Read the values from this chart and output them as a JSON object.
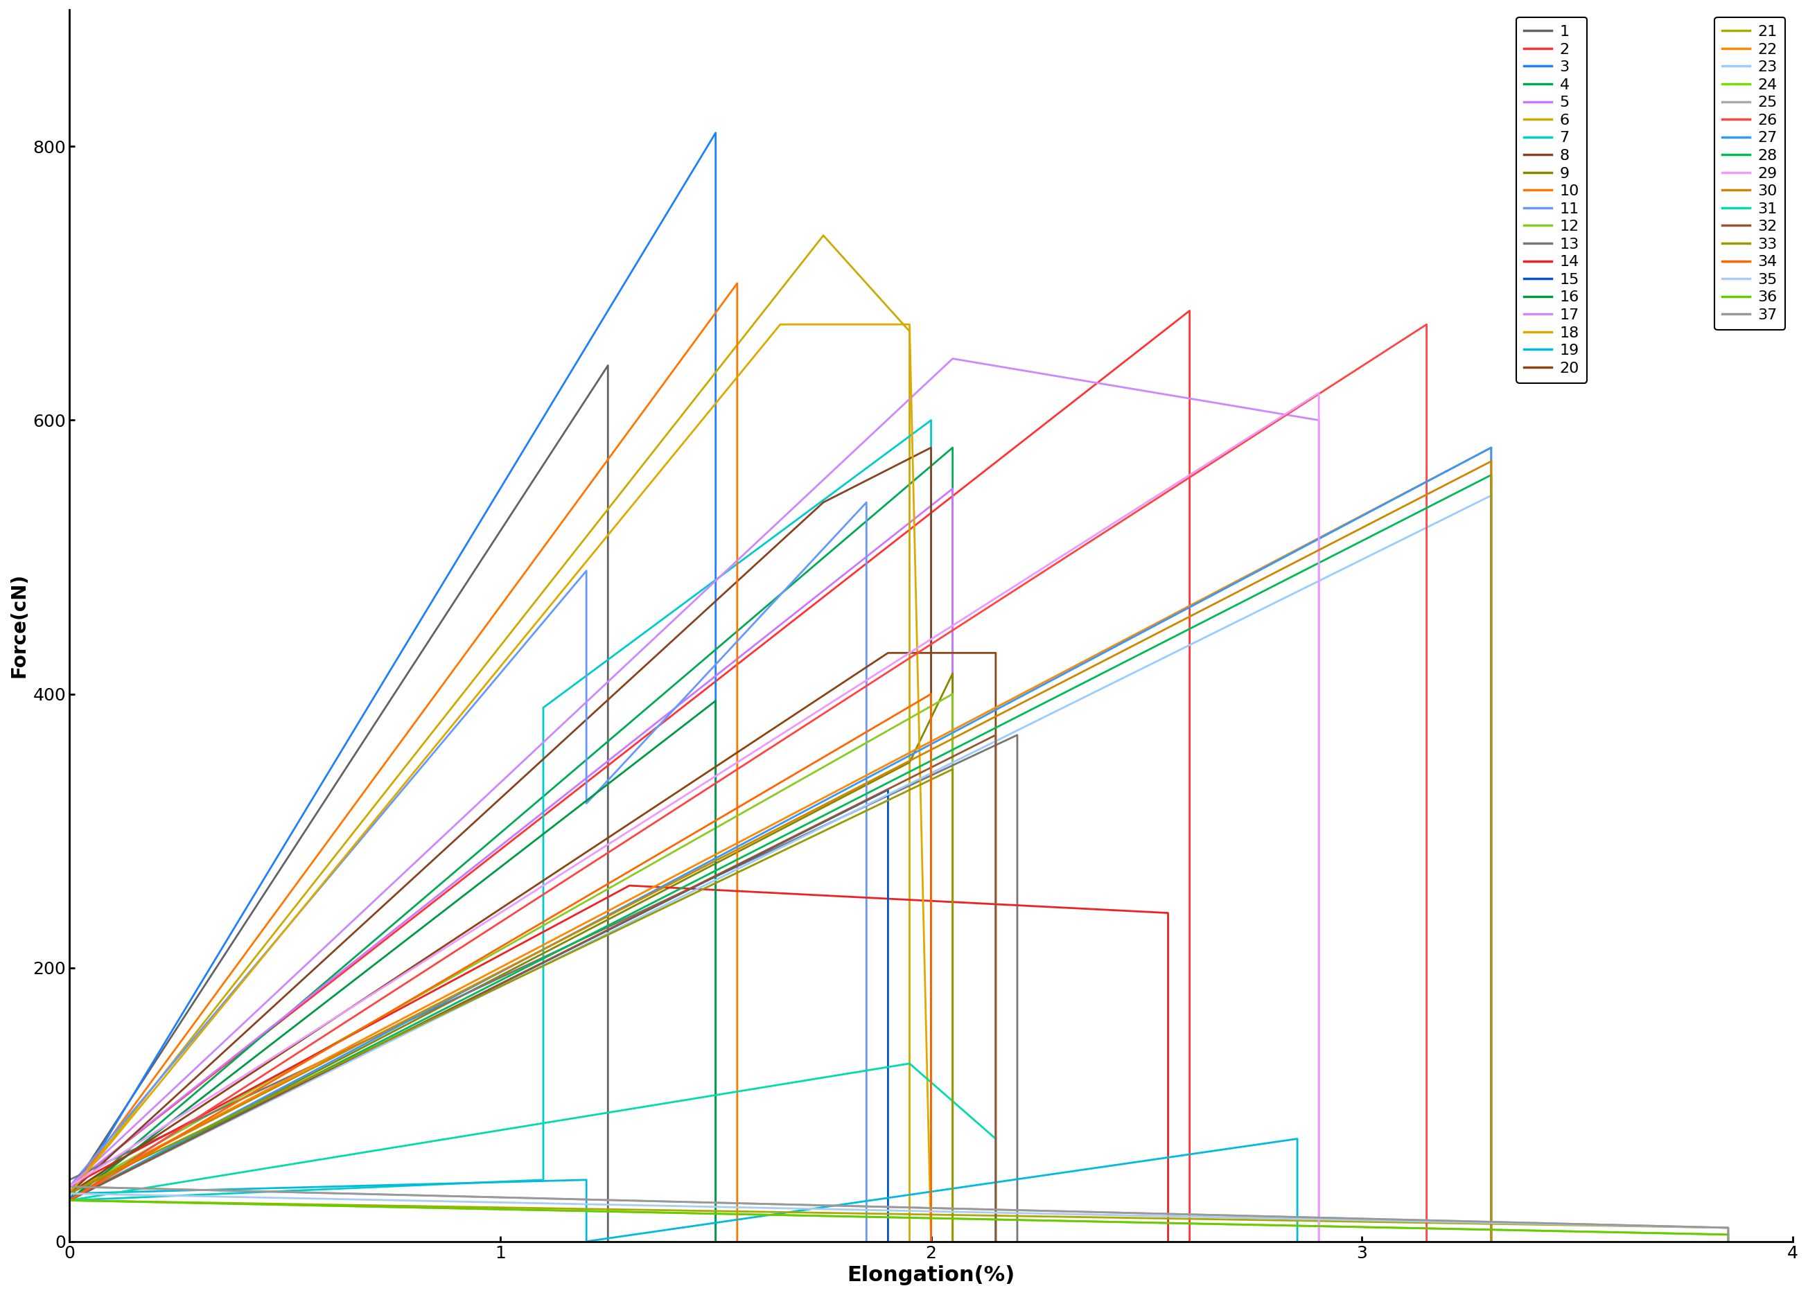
{
  "title": "",
  "xlabel": "Elongation(%)",
  "ylabel": "Force(cN)",
  "xlim": [
    0,
    4
  ],
  "ylim": [
    0,
    900
  ],
  "xticks": [
    0,
    1,
    2,
    3,
    4
  ],
  "yticks": [
    0,
    200,
    400,
    600,
    800
  ],
  "series": [
    {
      "label": "1",
      "color": "#636363",
      "data": [
        [
          0,
          35
        ],
        [
          1.25,
          640
        ],
        [
          1.25,
          0
        ]
      ]
    },
    {
      "label": "2",
      "color": "#ff3333",
      "data": [
        [
          0,
          40
        ],
        [
          2.6,
          680
        ],
        [
          2.6,
          0
        ]
      ]
    },
    {
      "label": "3",
      "color": "#1e7fff",
      "data": [
        [
          0,
          30
        ],
        [
          1.5,
          810
        ],
        [
          1.5,
          0
        ]
      ]
    },
    {
      "label": "4",
      "color": "#00aa55",
      "data": [
        [
          0,
          30
        ],
        [
          2.05,
          580
        ],
        [
          2.05,
          0
        ]
      ]
    },
    {
      "label": "5",
      "color": "#cc77ff",
      "data": [
        [
          0,
          40
        ],
        [
          2.05,
          550
        ],
        [
          2.05,
          0
        ]
      ]
    },
    {
      "label": "6",
      "color": "#ccaa00",
      "data": [
        [
          0,
          35
        ],
        [
          1.75,
          735
        ],
        [
          1.95,
          665
        ],
        [
          1.95,
          0
        ]
      ]
    },
    {
      "label": "7",
      "color": "#00cccc",
      "data": [
        [
          0,
          30
        ],
        [
          1.1,
          45
        ],
        [
          1.1,
          390
        ],
        [
          2.0,
          600
        ],
        [
          2.0,
          0
        ]
      ]
    },
    {
      "label": "8",
      "color": "#884422",
      "data": [
        [
          0,
          35
        ],
        [
          1.75,
          540
        ],
        [
          2.0,
          580
        ],
        [
          2.0,
          0
        ]
      ]
    },
    {
      "label": "9",
      "color": "#888800",
      "data": [
        [
          0,
          30
        ],
        [
          1.95,
          350
        ],
        [
          2.05,
          415
        ],
        [
          2.05,
          0
        ]
      ]
    },
    {
      "label": "10",
      "color": "#ff7700",
      "data": [
        [
          0,
          35
        ],
        [
          1.55,
          700
        ],
        [
          1.55,
          0
        ]
      ]
    },
    {
      "label": "11",
      "color": "#6699ff",
      "data": [
        [
          0,
          40
        ],
        [
          1.2,
          490
        ],
        [
          1.2,
          320
        ],
        [
          1.85,
          540
        ],
        [
          1.85,
          0
        ]
      ]
    },
    {
      "label": "12",
      "color": "#88cc22",
      "data": [
        [
          0,
          35
        ],
        [
          2.05,
          400
        ],
        [
          2.05,
          0
        ]
      ]
    },
    {
      "label": "13",
      "color": "#777777",
      "data": [
        [
          0,
          45
        ],
        [
          2.2,
          370
        ],
        [
          2.2,
          0
        ]
      ]
    },
    {
      "label": "14",
      "color": "#ee2222",
      "data": [
        [
          0,
          40
        ],
        [
          1.3,
          260
        ],
        [
          2.55,
          240
        ],
        [
          2.55,
          0
        ]
      ]
    },
    {
      "label": "15",
      "color": "#0055cc",
      "data": [
        [
          0,
          30
        ],
        [
          1.9,
          330
        ],
        [
          1.9,
          0
        ]
      ]
    },
    {
      "label": "16",
      "color": "#009944",
      "data": [
        [
          0,
          30
        ],
        [
          1.5,
          395
        ],
        [
          1.5,
          0
        ]
      ]
    },
    {
      "label": "17",
      "color": "#cc88ff",
      "data": [
        [
          0,
          40
        ],
        [
          2.05,
          645
        ],
        [
          2.9,
          600
        ],
        [
          2.9,
          0
        ]
      ]
    },
    {
      "label": "18",
      "color": "#ddaa00",
      "data": [
        [
          0,
          35
        ],
        [
          1.65,
          670
        ],
        [
          1.95,
          670
        ],
        [
          2.0,
          0
        ]
      ]
    },
    {
      "label": "19",
      "color": "#00bbdd",
      "data": [
        [
          0,
          35
        ],
        [
          1.2,
          45
        ],
        [
          1.2,
          0
        ],
        [
          2.85,
          75
        ],
        [
          2.85,
          0
        ]
      ]
    },
    {
      "label": "20",
      "color": "#8B4513",
      "data": [
        [
          0,
          35
        ],
        [
          1.9,
          430
        ],
        [
          2.15,
          430
        ],
        [
          2.15,
          0
        ]
      ]
    },
    {
      "label": "21",
      "color": "#aaaa00",
      "data": [
        [
          0,
          30
        ],
        [
          3.85,
          10
        ],
        [
          3.85,
          0
        ]
      ]
    },
    {
      "label": "22",
      "color": "#ff8800",
      "data": [
        [
          0,
          35
        ],
        [
          3.3,
          580
        ],
        [
          3.3,
          0
        ]
      ]
    },
    {
      "label": "23",
      "color": "#99ccff",
      "data": [
        [
          0,
          30
        ],
        [
          3.3,
          545
        ],
        [
          3.3,
          0
        ]
      ]
    },
    {
      "label": "24",
      "color": "#77dd00",
      "data": [
        [
          0,
          30
        ],
        [
          3.85,
          5
        ],
        [
          3.85,
          0
        ]
      ]
    },
    {
      "label": "25",
      "color": "#aaaaaa",
      "data": [
        [
          0,
          40
        ],
        [
          3.85,
          10
        ],
        [
          3.85,
          0
        ]
      ]
    },
    {
      "label": "26",
      "color": "#ff4444",
      "data": [
        [
          0,
          30
        ],
        [
          3.15,
          670
        ],
        [
          3.15,
          0
        ]
      ]
    },
    {
      "label": "27",
      "color": "#3399ff",
      "data": [
        [
          0,
          30
        ],
        [
          3.3,
          580
        ],
        [
          3.3,
          0
        ]
      ]
    },
    {
      "label": "28",
      "color": "#00bb55",
      "data": [
        [
          0,
          30
        ],
        [
          3.3,
          560
        ],
        [
          3.3,
          0
        ]
      ]
    },
    {
      "label": "29",
      "color": "#ee99ff",
      "data": [
        [
          0,
          40
        ],
        [
          2.9,
          620
        ],
        [
          2.9,
          0
        ]
      ]
    },
    {
      "label": "30",
      "color": "#cc8800",
      "data": [
        [
          0,
          35
        ],
        [
          3.3,
          570
        ],
        [
          3.3,
          0
        ]
      ]
    },
    {
      "label": "31",
      "color": "#00ddaa",
      "data": [
        [
          0,
          30
        ],
        [
          1.95,
          130
        ],
        [
          2.15,
          75
        ],
        [
          2.15,
          0
        ]
      ]
    },
    {
      "label": "32",
      "color": "#995533",
      "data": [
        [
          0,
          30
        ],
        [
          2.15,
          370
        ],
        [
          2.15,
          0
        ]
      ]
    },
    {
      "label": "33",
      "color": "#999900",
      "data": [
        [
          0,
          35
        ],
        [
          2.05,
          345
        ],
        [
          2.05,
          0
        ]
      ]
    },
    {
      "label": "34",
      "color": "#ff6600",
      "data": [
        [
          0,
          30
        ],
        [
          2.0,
          400
        ],
        [
          2.0,
          0
        ]
      ]
    },
    {
      "label": "35",
      "color": "#aaccee",
      "data": [
        [
          0,
          35
        ],
        [
          3.85,
          10
        ],
        [
          3.85,
          0
        ]
      ]
    },
    {
      "label": "36",
      "color": "#66cc00",
      "data": [
        [
          0,
          30
        ],
        [
          3.85,
          5
        ],
        [
          3.85,
          0
        ]
      ]
    },
    {
      "label": "37",
      "color": "#999999",
      "data": [
        [
          0,
          40
        ],
        [
          3.85,
          10
        ],
        [
          3.85,
          0
        ]
      ]
    }
  ],
  "background_color": "#ffffff",
  "linewidth": 2.0,
  "xlabel_fontsize": 22,
  "ylabel_fontsize": 20,
  "tick_fontsize": 18,
  "legend_fontsize": 16
}
